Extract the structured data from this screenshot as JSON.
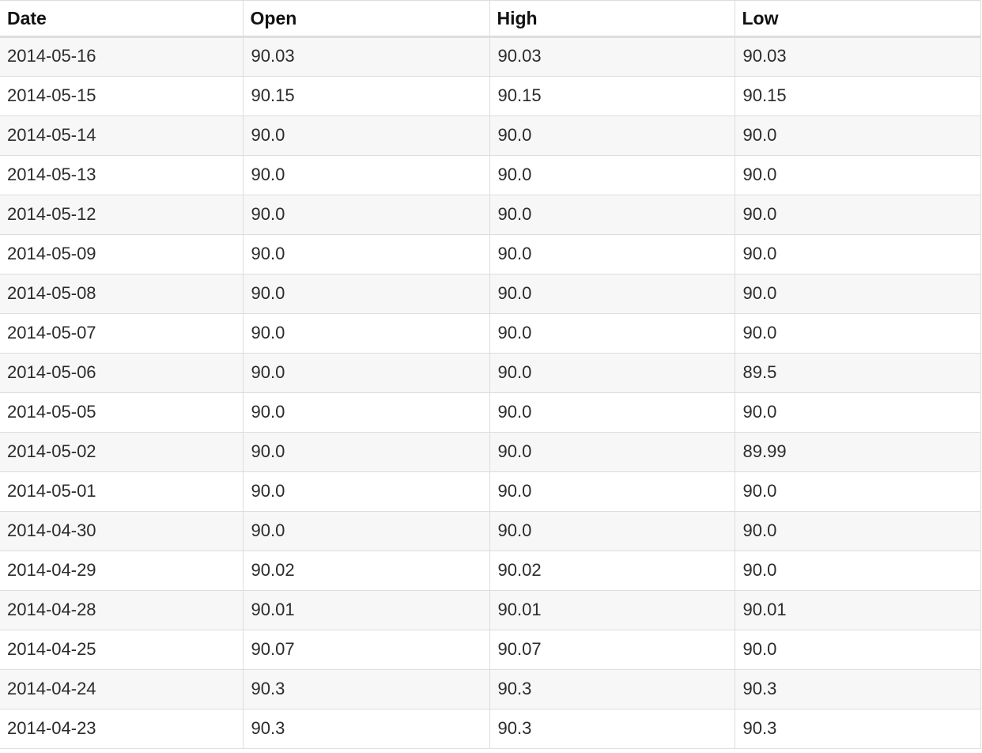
{
  "table": {
    "columns": [
      "Date",
      "Open",
      "High",
      "Low"
    ],
    "rows": [
      [
        "2014-05-16",
        "90.03",
        "90.03",
        "90.03"
      ],
      [
        "2014-05-15",
        "90.15",
        "90.15",
        "90.15"
      ],
      [
        "2014-05-14",
        "90.0",
        "90.0",
        "90.0"
      ],
      [
        "2014-05-13",
        "90.0",
        "90.0",
        "90.0"
      ],
      [
        "2014-05-12",
        "90.0",
        "90.0",
        "90.0"
      ],
      [
        "2014-05-09",
        "90.0",
        "90.0",
        "90.0"
      ],
      [
        "2014-05-08",
        "90.0",
        "90.0",
        "90.0"
      ],
      [
        "2014-05-07",
        "90.0",
        "90.0",
        "90.0"
      ],
      [
        "2014-05-06",
        "90.0",
        "90.0",
        "89.5"
      ],
      [
        "2014-05-05",
        "90.0",
        "90.0",
        "90.0"
      ],
      [
        "2014-05-02",
        "90.0",
        "90.0",
        "89.99"
      ],
      [
        "2014-05-01",
        "90.0",
        "90.0",
        "90.0"
      ],
      [
        "2014-04-30",
        "90.0",
        "90.0",
        "90.0"
      ],
      [
        "2014-04-29",
        "90.02",
        "90.02",
        "90.0"
      ],
      [
        "2014-04-28",
        "90.01",
        "90.01",
        "90.01"
      ],
      [
        "2014-04-25",
        "90.07",
        "90.07",
        "90.0"
      ],
      [
        "2014-04-24",
        "90.3",
        "90.3",
        "90.3"
      ],
      [
        "2014-04-23",
        "90.3",
        "90.3",
        "90.3"
      ]
    ]
  }
}
